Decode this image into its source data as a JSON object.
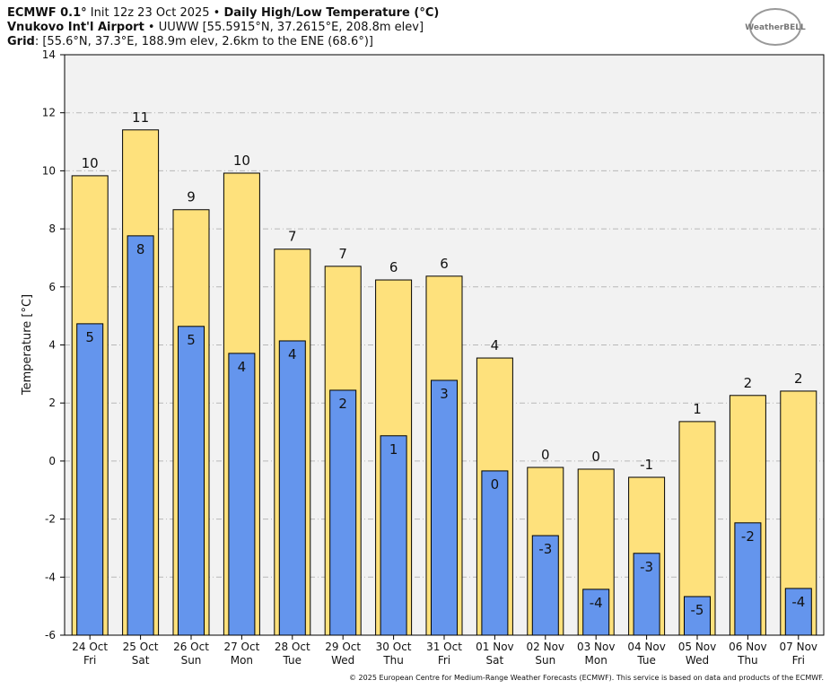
{
  "header": {
    "line1": [
      "ECMWF 0.1°",
      " Init 12z 23 Oct 2025 • ",
      "Daily High/Low Temperature (°C)"
    ],
    "line2": [
      "Vnukovo Int'l Airport",
      " • UUWW [55.5915°N, 37.2615°E, 208.8m elev]"
    ],
    "line3": [
      "Grid",
      ": [55.6°N, 37.3°E, 188.9m elev, 2.6km to the ENE (68.6°)]"
    ],
    "logo": "WeatherBELL"
  },
  "footer": "© 2025 European Centre for Medium-Range Weather Forecasts (ECMWF). This service is based on data and products of the ECMWF.",
  "chart_data": {
    "type": "bar",
    "ylabel": "Temperature [°C]",
    "categories": [
      "24 Oct",
      "25 Oct",
      "26 Oct",
      "27 Oct",
      "28 Oct",
      "29 Oct",
      "30 Oct",
      "31 Oct",
      "01 Nov",
      "02 Nov",
      "03 Nov",
      "04 Nov",
      "05 Nov",
      "06 Nov",
      "07 Nov"
    ],
    "weekdays": [
      "Fri",
      "Sat",
      "Sun",
      "Mon",
      "Tue",
      "Wed",
      "Thu",
      "Fri",
      "Sat",
      "Sun",
      "Mon",
      "Tue",
      "Wed",
      "Thu",
      "Fri"
    ],
    "series": [
      {
        "name": "High",
        "color": "#fee17c",
        "values": [
          9.83,
          11.41,
          8.66,
          9.92,
          7.3,
          6.71,
          6.24,
          6.37,
          3.55,
          -0.22,
          -0.28,
          -0.56,
          1.36,
          2.26,
          2.41
        ],
        "value_labels": [
          "10",
          "11",
          "9",
          "10",
          "7",
          "7",
          "6",
          "6",
          "4",
          "0",
          "0",
          "-1",
          "1",
          "2",
          "2"
        ]
      },
      {
        "name": "Low",
        "color": "#6495ed",
        "values": [
          4.73,
          7.76,
          4.64,
          3.71,
          4.14,
          2.44,
          0.87,
          2.78,
          -0.34,
          -2.57,
          -4.42,
          -3.18,
          -4.67,
          -2.13,
          -4.39
        ],
        "value_labels": [
          "5",
          "8",
          "5",
          "4",
          "4",
          "2",
          "1",
          "3",
          "0",
          "-3",
          "-4",
          "-3",
          "-5",
          "-2",
          "-4"
        ]
      }
    ],
    "ylim": [
      -6,
      14
    ],
    "yticks": [
      -6,
      -4,
      -2,
      0,
      2,
      4,
      6,
      8,
      10,
      12,
      14
    ],
    "grid": true
  }
}
